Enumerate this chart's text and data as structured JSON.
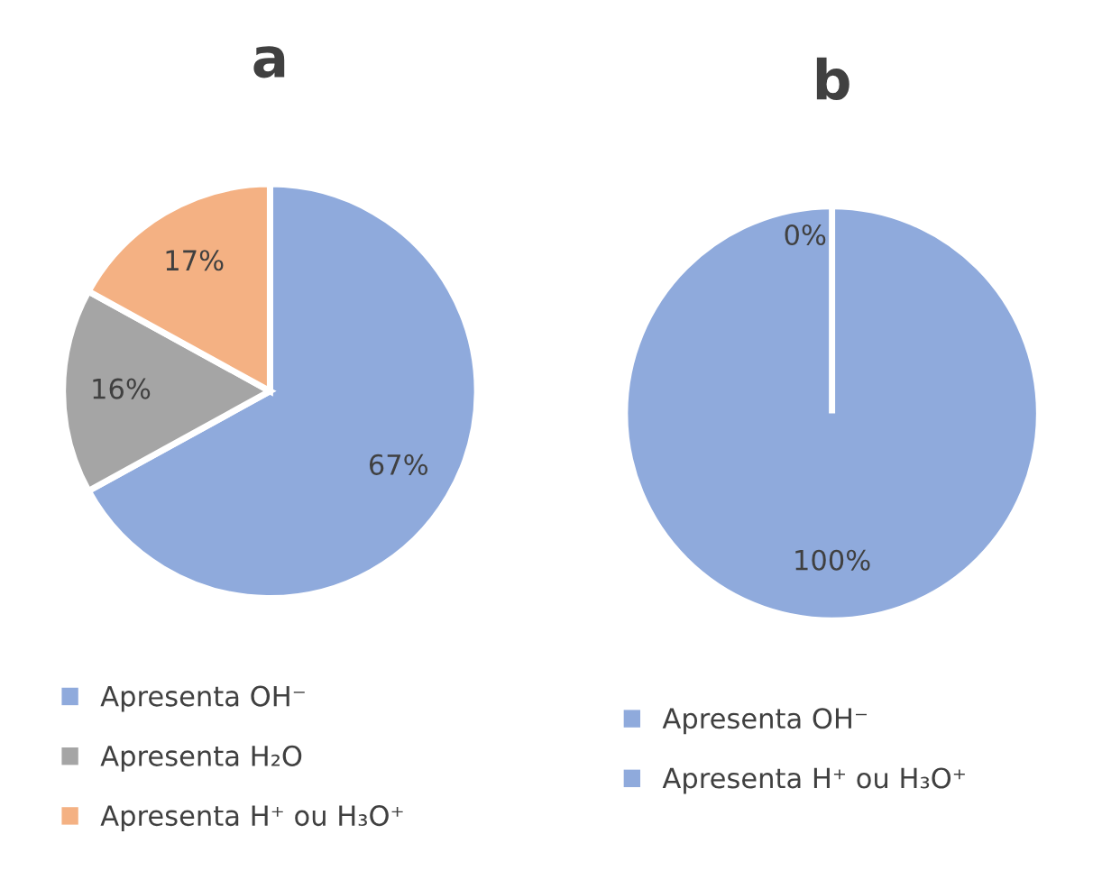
{
  "chart_data": [
    {
      "type": "pie",
      "title": "a",
      "categories": [
        "Apresenta OH⁻",
        "Apresenta H₂O",
        "Apresenta H⁺ ou H₃O⁺"
      ],
      "values": [
        67,
        16,
        17
      ],
      "value_labels": [
        "67%",
        "16%",
        "17%"
      ],
      "colors": [
        "#8faadc",
        "#a5a5a5",
        "#f4b183"
      ],
      "legend": "bottom"
    },
    {
      "type": "pie",
      "title": "b",
      "categories": [
        "Apresenta OH⁻",
        "Apresenta H⁺ ou H₃O⁺"
      ],
      "values": [
        100,
        0
      ],
      "value_labels": [
        "100%",
        "0%"
      ],
      "colors": [
        "#8faadc",
        "#8faadc"
      ],
      "legend": "bottom"
    }
  ]
}
